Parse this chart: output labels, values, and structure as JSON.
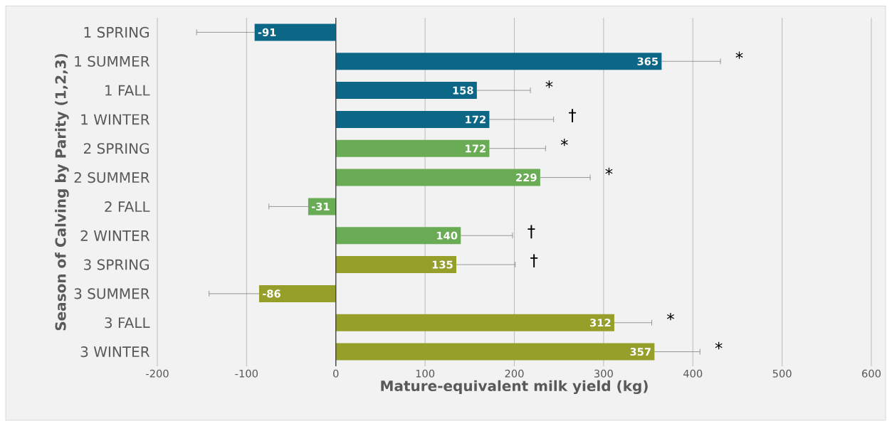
{
  "chart_data": {
    "type": "bar",
    "orientation": "horizontal",
    "xlabel": "Mature-equivalent milk yield (kg)",
    "ylabel": "Season of Calving by Parity (1,2,3)",
    "categories": [
      "1 SPRING",
      "1 SUMMER",
      "1 FALL",
      "1 WINTER",
      "2 SPRING",
      "2 SUMMER",
      "2 FALL",
      "2 WINTER",
      "3 SPRING",
      "3 SUMMER",
      "3 FALL",
      "3 WINTER"
    ],
    "values": [
      -91,
      365,
      158,
      172,
      172,
      229,
      -31,
      140,
      135,
      -86,
      312,
      357
    ],
    "colors": [
      "#0b6785",
      "#0b6785",
      "#0b6785",
      "#0b6785",
      "#6aab55",
      "#6aab55",
      "#6aab55",
      "#6aab55",
      "#959f2a",
      "#959f2a",
      "#959f2a",
      "#959f2a"
    ],
    "errors": [
      [
        -156,
        -91
      ],
      [
        365,
        431
      ],
      [
        158,
        218
      ],
      [
        172,
        244
      ],
      [
        172,
        235
      ],
      [
        229,
        285
      ],
      [
        -75,
        -31
      ],
      [
        140,
        198
      ],
      [
        135,
        201
      ],
      [
        -142,
        -86
      ],
      [
        312,
        354
      ],
      [
        357,
        408
      ]
    ],
    "data_labels": true,
    "grid": "x",
    "xlim": [
      -200,
      600
    ],
    "xticks": [
      -200,
      -100,
      0,
      100,
      200,
      300,
      400,
      500,
      600
    ],
    "annotations": [
      "*",
      "*",
      "†",
      "*",
      "*",
      "†",
      "†",
      "*",
      "*"
    ]
  }
}
